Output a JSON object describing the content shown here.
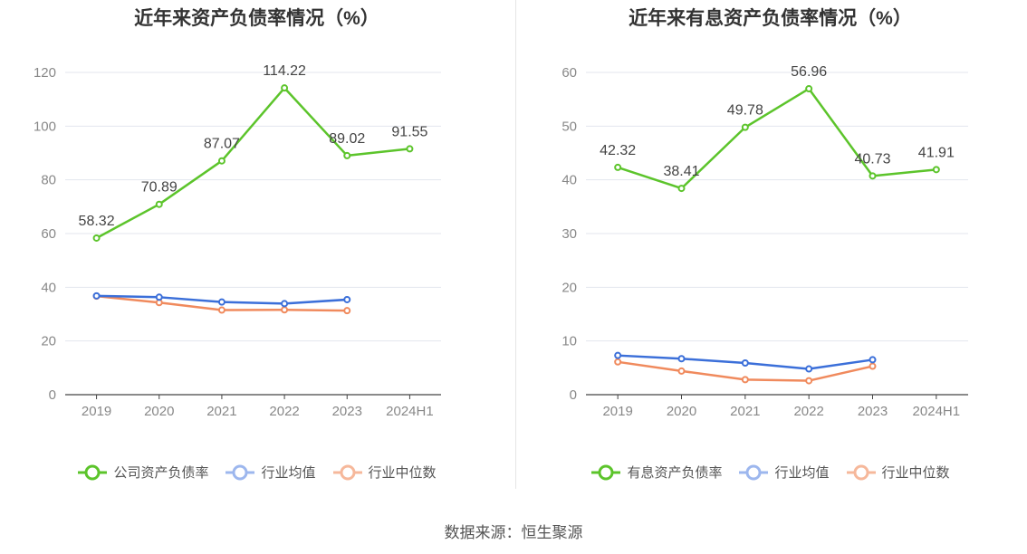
{
  "source_text": "数据来源：恒生聚源",
  "chart_data": [
    {
      "type": "line",
      "title": "近年来资产负债率情况（%）",
      "categories": [
        "2019",
        "2020",
        "2021",
        "2022",
        "2023",
        "2024H1"
      ],
      "ylim": [
        0,
        120
      ],
      "yticks": [
        0,
        20,
        40,
        60,
        80,
        100,
        120
      ],
      "xlabel": "",
      "ylabel": "",
      "grid": true,
      "legend_position": "bottom",
      "series": [
        {
          "name": "公司资产负债率",
          "color": "#5cc42b",
          "values": [
            58.32,
            70.89,
            87.07,
            114.22,
            89.02,
            91.55
          ],
          "labels": [
            "58.32",
            "70.89",
            "87.07",
            "114.22",
            "89.02",
            "91.55"
          ]
        },
        {
          "name": "行业均值",
          "color": "#3b6fd9",
          "values": [
            36.8,
            36.3,
            34.5,
            33.9,
            35.4,
            null
          ]
        },
        {
          "name": "行业中位数",
          "color": "#f08a5d",
          "values": [
            36.7,
            34.3,
            31.5,
            31.6,
            31.3,
            null
          ]
        }
      ]
    },
    {
      "type": "line",
      "title": "近年来有息资产负债率情况（%）",
      "categories": [
        "2019",
        "2020",
        "2021",
        "2022",
        "2023",
        "2024H1"
      ],
      "ylim": [
        0,
        60
      ],
      "yticks": [
        0,
        10,
        20,
        30,
        40,
        50,
        60
      ],
      "xlabel": "",
      "ylabel": "",
      "grid": true,
      "legend_position": "bottom",
      "series": [
        {
          "name": "有息资产负债率",
          "color": "#5cc42b",
          "values": [
            42.32,
            38.41,
            49.78,
            56.96,
            40.73,
            41.91
          ],
          "labels": [
            "42.32",
            "38.41",
            "49.78",
            "56.96",
            "40.73",
            "41.91"
          ]
        },
        {
          "name": "行业均值",
          "color": "#3b6fd9",
          "values": [
            7.3,
            6.7,
            5.9,
            4.8,
            6.5,
            null
          ]
        },
        {
          "name": "行业中位数",
          "color": "#f08a5d",
          "values": [
            6.1,
            4.4,
            2.8,
            2.6,
            5.3,
            null
          ]
        }
      ]
    }
  ]
}
